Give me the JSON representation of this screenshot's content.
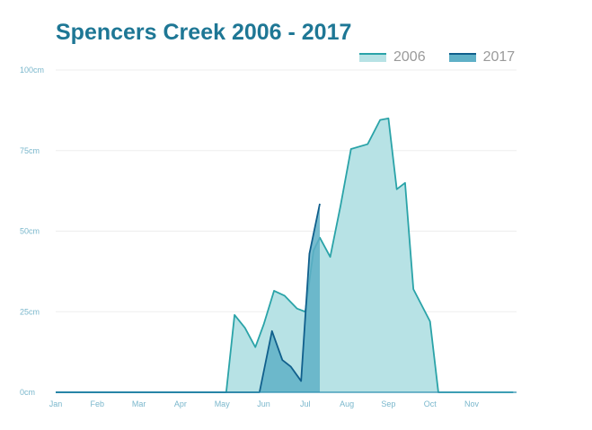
{
  "chart_data": {
    "type": "area",
    "title": "Spencers Creek 2006 - 2017",
    "xlabel": "",
    "ylabel": "",
    "x_ticks": [
      "Jan",
      "Feb",
      "Mar",
      "Apr",
      "May",
      "Jun",
      "Jul",
      "Aug",
      "Sep",
      "Oct",
      "Nov"
    ],
    "y_ticks": [
      "0cm",
      "25cm",
      "50cm",
      "75cm",
      "100cm"
    ],
    "ylim": [
      0,
      100
    ],
    "xlim": [
      0,
      11
    ],
    "legend_position": "top-right",
    "grid": true,
    "series": [
      {
        "name": "2006",
        "color": "#2aa3a8",
        "fill": "#b7e2e5",
        "x": [
          0,
          4.1,
          4.3,
          4.55,
          4.8,
          5.0,
          5.25,
          5.5,
          5.8,
          6.0,
          6.2,
          6.35,
          6.6,
          6.85,
          7.1,
          7.5,
          7.8,
          8.0,
          8.2,
          8.4,
          8.6,
          9.0,
          9.2,
          9.35,
          11
        ],
        "y": [
          0,
          0,
          24,
          20,
          14,
          21,
          31.5,
          30,
          26,
          25,
          44,
          48,
          42,
          58,
          75.5,
          77,
          84.5,
          85,
          63,
          65,
          32,
          22,
          0,
          0,
          0
        ]
      },
      {
        "name": "2017",
        "color": "#105f8c",
        "fill": "#5fb0c7",
        "x": [
          0,
          4.9,
          5.2,
          5.45,
          5.65,
          5.9,
          6.1,
          6.35
        ],
        "y": [
          0,
          0,
          19,
          10,
          8,
          3.5,
          43,
          58.5
        ]
      }
    ]
  }
}
